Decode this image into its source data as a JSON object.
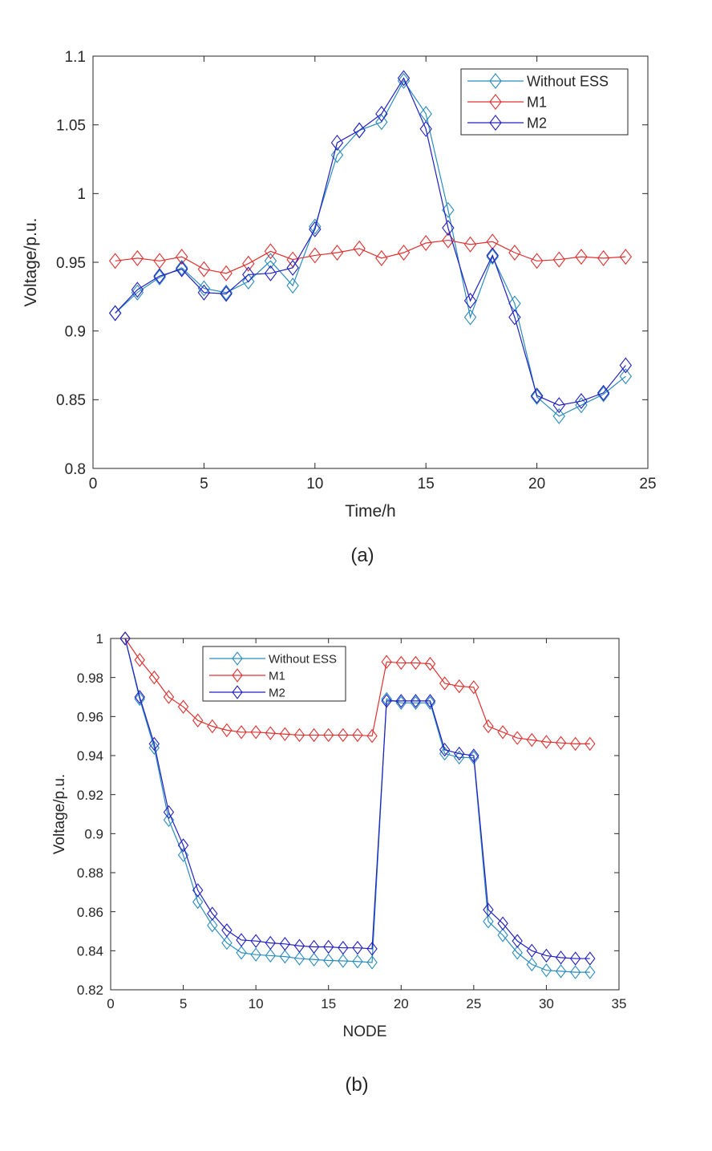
{
  "chart_data": [
    {
      "type": "line",
      "caption": "(a)",
      "title": "",
      "xlabel": "Time/h",
      "ylabel": "Voltage/p.u.",
      "xlim": [
        0,
        25
      ],
      "ylim": [
        0.8,
        1.1
      ],
      "xticks": [
        0,
        5,
        10,
        15,
        20,
        25
      ],
      "yticks": [
        0.8,
        0.85,
        0.9,
        0.95,
        1.0,
        1.05,
        1.1
      ],
      "xtick_labels": [
        "0",
        "5",
        "10",
        "15",
        "20",
        "25"
      ],
      "ytick_labels": [
        "0.8",
        "0.85",
        "0.9",
        "0.95",
        "1",
        "1.05",
        "1.1"
      ],
      "grid": false,
      "legend_position": "top-right",
      "marker": "diamond",
      "x": [
        1,
        2,
        3,
        4,
        5,
        6,
        7,
        8,
        9,
        10,
        11,
        12,
        13,
        14,
        15,
        16,
        17,
        18,
        19,
        20,
        21,
        22,
        23,
        24
      ],
      "series": [
        {
          "name": "Without ESS",
          "color": "#2B8CBE",
          "values": [
            0.913,
            0.928,
            0.939,
            0.946,
            0.931,
            0.928,
            0.936,
            0.951,
            0.933,
            0.976,
            1.028,
            1.046,
            1.052,
            1.082,
            1.058,
            0.988,
            0.91,
            0.954,
            0.92,
            0.852,
            0.838,
            0.846,
            0.854,
            0.867
          ]
        },
        {
          "name": "M1",
          "color": "#E03030",
          "values": [
            0.951,
            0.953,
            0.951,
            0.954,
            0.945,
            0.942,
            0.949,
            0.958,
            0.952,
            0.955,
            0.957,
            0.96,
            0.953,
            0.957,
            0.964,
            0.966,
            0.963,
            0.965,
            0.957,
            0.951,
            0.952,
            0.954,
            0.953,
            0.954
          ]
        },
        {
          "name": "M2",
          "color": "#2020C0",
          "values": [
            0.913,
            0.93,
            0.94,
            0.945,
            0.928,
            0.927,
            0.941,
            0.942,
            0.946,
            0.974,
            1.037,
            1.046,
            1.058,
            1.084,
            1.047,
            0.975,
            0.922,
            0.955,
            0.91,
            0.853,
            0.846,
            0.849,
            0.855,
            0.875
          ]
        }
      ]
    },
    {
      "type": "line",
      "caption": "(b)",
      "title": "",
      "xlabel": "NODE",
      "ylabel": "Voltage/p.u.",
      "xlim": [
        0,
        35
      ],
      "ylim": [
        0.82,
        1.0
      ],
      "xticks": [
        0,
        5,
        10,
        15,
        20,
        25,
        30,
        35
      ],
      "yticks": [
        0.82,
        0.84,
        0.86,
        0.88,
        0.9,
        0.92,
        0.94,
        0.96,
        0.98,
        1.0
      ],
      "xtick_labels": [
        "0",
        "5",
        "10",
        "15",
        "20",
        "25",
        "30",
        "35"
      ],
      "ytick_labels": [
        "0.82",
        "0.84",
        "0.86",
        "0.88",
        "0.9",
        "0.92",
        "0.94",
        "0.96",
        "0.98",
        "1"
      ],
      "grid": false,
      "legend_position": "top-left",
      "marker": "diamond",
      "x": [
        1,
        2,
        3,
        4,
        5,
        6,
        7,
        8,
        9,
        10,
        11,
        12,
        13,
        14,
        15,
        16,
        17,
        18,
        19,
        20,
        21,
        22,
        23,
        24,
        25,
        26,
        27,
        28,
        29,
        30,
        31,
        32,
        33
      ],
      "series": [
        {
          "name": "Without ESS",
          "color": "#2B8CBE",
          "values": [
            1.0,
            0.969,
            0.944,
            0.907,
            0.889,
            0.865,
            0.853,
            0.844,
            0.839,
            0.838,
            0.8375,
            0.837,
            0.836,
            0.8355,
            0.835,
            0.8348,
            0.8345,
            0.834,
            0.969,
            0.967,
            0.967,
            0.967,
            0.941,
            0.939,
            0.939,
            0.855,
            0.848,
            0.839,
            0.833,
            0.83,
            0.8295,
            0.829,
            0.829
          ]
        },
        {
          "name": "M1",
          "color": "#E03030",
          "values": [
            1.0,
            0.989,
            0.98,
            0.97,
            0.965,
            0.958,
            0.955,
            0.953,
            0.952,
            0.952,
            0.9515,
            0.951,
            0.9505,
            0.9505,
            0.9505,
            0.9505,
            0.9505,
            0.95,
            0.988,
            0.9875,
            0.9875,
            0.987,
            0.977,
            0.9755,
            0.975,
            0.955,
            0.952,
            0.949,
            0.948,
            0.947,
            0.9465,
            0.946,
            0.946
          ]
        },
        {
          "name": "M2",
          "color": "#2020C0",
          "values": [
            1.0,
            0.97,
            0.946,
            0.911,
            0.894,
            0.871,
            0.859,
            0.8505,
            0.8455,
            0.845,
            0.844,
            0.8435,
            0.8425,
            0.842,
            0.842,
            0.8415,
            0.8415,
            0.841,
            0.968,
            0.968,
            0.968,
            0.968,
            0.943,
            0.941,
            0.94,
            0.861,
            0.854,
            0.845,
            0.84,
            0.8375,
            0.8365,
            0.836,
            0.836
          ]
        }
      ]
    }
  ]
}
